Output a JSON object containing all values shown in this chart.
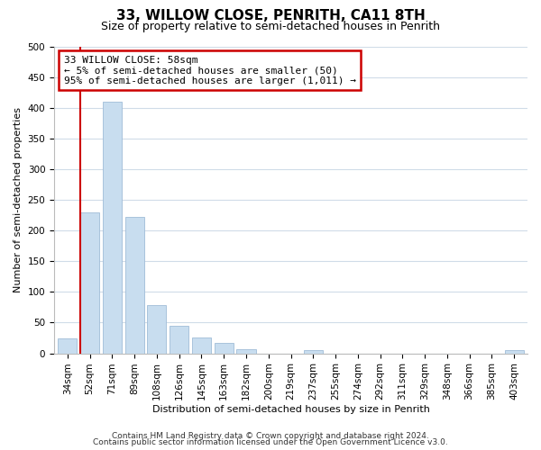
{
  "title": "33, WILLOW CLOSE, PENRITH, CA11 8TH",
  "subtitle": "Size of property relative to semi-detached houses in Penrith",
  "xlabel": "Distribution of semi-detached houses by size in Penrith",
  "ylabel": "Number of semi-detached properties",
  "bar_labels": [
    "34sqm",
    "52sqm",
    "71sqm",
    "89sqm",
    "108sqm",
    "126sqm",
    "145sqm",
    "163sqm",
    "182sqm",
    "200sqm",
    "219sqm",
    "237sqm",
    "255sqm",
    "274sqm",
    "292sqm",
    "311sqm",
    "329sqm",
    "348sqm",
    "366sqm",
    "385sqm",
    "403sqm"
  ],
  "bar_values": [
    25,
    230,
    410,
    222,
    78,
    45,
    26,
    17,
    7,
    0,
    0,
    6,
    0,
    0,
    0,
    0,
    0,
    0,
    0,
    0,
    5
  ],
  "bar_color": "#c8ddef",
  "bar_edge_color": "#a0bcd8",
  "vline_x": 1.5,
  "vline_color": "#cc0000",
  "ylim": [
    0,
    500
  ],
  "yticks": [
    0,
    50,
    100,
    150,
    200,
    250,
    300,
    350,
    400,
    450,
    500
  ],
  "annotation_title": "33 WILLOW CLOSE: 58sqm",
  "annotation_line1": "← 5% of semi-detached houses are smaller (50)",
  "annotation_line2": "95% of semi-detached houses are larger (1,011) →",
  "footer_line1": "Contains HM Land Registry data © Crown copyright and database right 2024.",
  "footer_line2": "Contains public sector information licensed under the Open Government Licence v3.0.",
  "grid_color": "#d0dce8",
  "bg_color": "#ffffff",
  "title_fontsize": 11,
  "subtitle_fontsize": 9,
  "axis_label_fontsize": 8,
  "tick_fontsize": 7.5,
  "footer_fontsize": 6.5
}
